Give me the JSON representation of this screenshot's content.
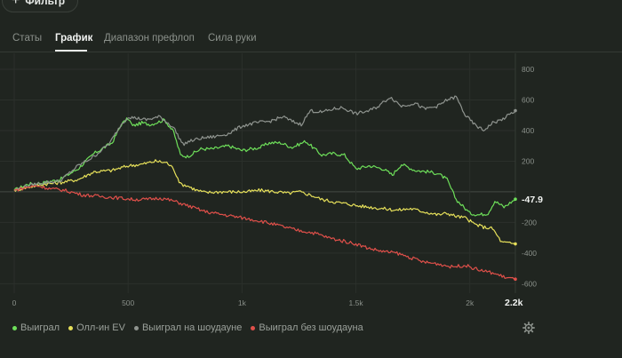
{
  "header": {
    "filter_label": "Фильтр"
  },
  "tabs": [
    {
      "label": "Статы"
    },
    {
      "label": "График"
    },
    {
      "label": "Диапазон префлоп"
    },
    {
      "label": "Сила руки"
    }
  ],
  "active_tab": "График",
  "colors": {
    "background": "#202520",
    "won": "#6ee05a",
    "allin_ev": "#e6e05a",
    "showdown": "#8f948f",
    "non_showdown": "#e0504a"
  },
  "chart_data": {
    "type": "line",
    "xlim": [
      0,
      2200
    ],
    "ylim": [
      -650,
      800
    ],
    "x_ticks": [
      {
        "value": 0,
        "label": "0"
      },
      {
        "value": 500,
        "label": "500"
      },
      {
        "value": 1000,
        "label": "1k"
      },
      {
        "value": 1500,
        "label": "1.5k"
      },
      {
        "value": 2000,
        "label": "2k"
      }
    ],
    "y_ticks": [
      {
        "value": 800,
        "label": "800"
      },
      {
        "value": 600,
        "label": "600"
      },
      {
        "value": 400,
        "label": "400"
      },
      {
        "value": 200,
        "label": "200"
      },
      {
        "value": 0,
        "label": ""
      },
      {
        "value": -200,
        "label": "-200"
      },
      {
        "value": -400,
        "label": "-400"
      },
      {
        "value": -600,
        "label": "-600"
      }
    ],
    "x_end_label": "2.2k",
    "end_value_label": "-47.9",
    "series": [
      {
        "name": "Выиграл",
        "key": "won",
        "x": [
          0,
          60,
          130,
          200,
          280,
          350,
          430,
          470,
          500,
          520,
          560,
          600,
          660,
          700,
          730,
          760,
          820,
          870,
          940,
          1000,
          1080,
          1120,
          1170,
          1220,
          1280,
          1350,
          1400,
          1450,
          1500,
          1560,
          1620,
          1660,
          1700,
          1760,
          1820,
          1860,
          1900,
          1940,
          1980,
          2000,
          2040,
          2080,
          2110,
          2150,
          2200
        ],
        "y": [
          10,
          50,
          60,
          80,
          150,
          250,
          320,
          440,
          480,
          430,
          450,
          440,
          470,
          390,
          240,
          230,
          280,
          280,
          300,
          270,
          290,
          320,
          320,
          290,
          330,
          240,
          250,
          240,
          150,
          170,
          150,
          110,
          180,
          140,
          130,
          120,
          80,
          -50,
          -110,
          -140,
          -150,
          -140,
          -60,
          -100,
          -48
        ]
      },
      {
        "name": "Олл-ин EV",
        "key": "allin_ev",
        "x": [
          0,
          60,
          130,
          200,
          280,
          350,
          430,
          500,
          560,
          620,
          670,
          700,
          730,
          760,
          800,
          840,
          900,
          960,
          1020,
          1080,
          1150,
          1200,
          1250,
          1300,
          1350,
          1420,
          1470,
          1500,
          1560,
          1620,
          1680,
          1740,
          1800,
          1860,
          1900,
          1940,
          1980,
          2020,
          2060,
          2100,
          2140,
          2200
        ],
        "y": [
          10,
          30,
          50,
          60,
          80,
          130,
          140,
          170,
          180,
          200,
          190,
          150,
          50,
          40,
          10,
          -5,
          0,
          0,
          0,
          10,
          0,
          -10,
          0,
          -20,
          -50,
          -70,
          -80,
          -90,
          -100,
          -110,
          -120,
          -110,
          -130,
          -150,
          -140,
          -160,
          -170,
          -210,
          -230,
          -240,
          -330,
          -340
        ]
      },
      {
        "name": "Выиграл на шоудауне",
        "key": "showdown",
        "x": [
          0,
          60,
          130,
          200,
          280,
          350,
          420,
          470,
          500,
          540,
          580,
          640,
          700,
          740,
          770,
          820,
          880,
          940,
          1000,
          1060,
          1120,
          1180,
          1220,
          1260,
          1300,
          1350,
          1400,
          1440,
          1500,
          1560,
          1600,
          1650,
          1700,
          1760,
          1800,
          1860,
          1900,
          1940,
          1980,
          2020,
          2060,
          2100,
          2140,
          2200
        ],
        "y": [
          10,
          40,
          60,
          70,
          170,
          230,
          320,
          440,
          490,
          480,
          470,
          490,
          420,
          310,
          330,
          350,
          360,
          380,
          430,
          450,
          460,
          490,
          460,
          440,
          530,
          520,
          540,
          550,
          510,
          530,
          560,
          620,
          560,
          580,
          540,
          560,
          600,
          620,
          500,
          440,
          400,
          450,
          470,
          530
        ]
      },
      {
        "name": "Выиграл без шоудауна",
        "key": "non_showdown",
        "x": [
          0,
          60,
          100,
          160,
          220,
          300,
          380,
          460,
          520,
          580,
          640,
          700,
          760,
          840,
          920,
          1000,
          1080,
          1160,
          1240,
          1320,
          1380,
          1440,
          1500,
          1560,
          1620,
          1680,
          1740,
          1800,
          1860,
          1920,
          1980,
          2040,
          2100,
          2160,
          2200
        ],
        "y": [
          10,
          30,
          40,
          20,
          10,
          -20,
          -30,
          -40,
          -50,
          -50,
          -40,
          -60,
          -90,
          -130,
          -150,
          -170,
          -190,
          -220,
          -250,
          -270,
          -300,
          -320,
          -340,
          -370,
          -390,
          -400,
          -430,
          -460,
          -470,
          -490,
          -480,
          -510,
          -530,
          -560,
          -570
        ]
      }
    ]
  }
}
